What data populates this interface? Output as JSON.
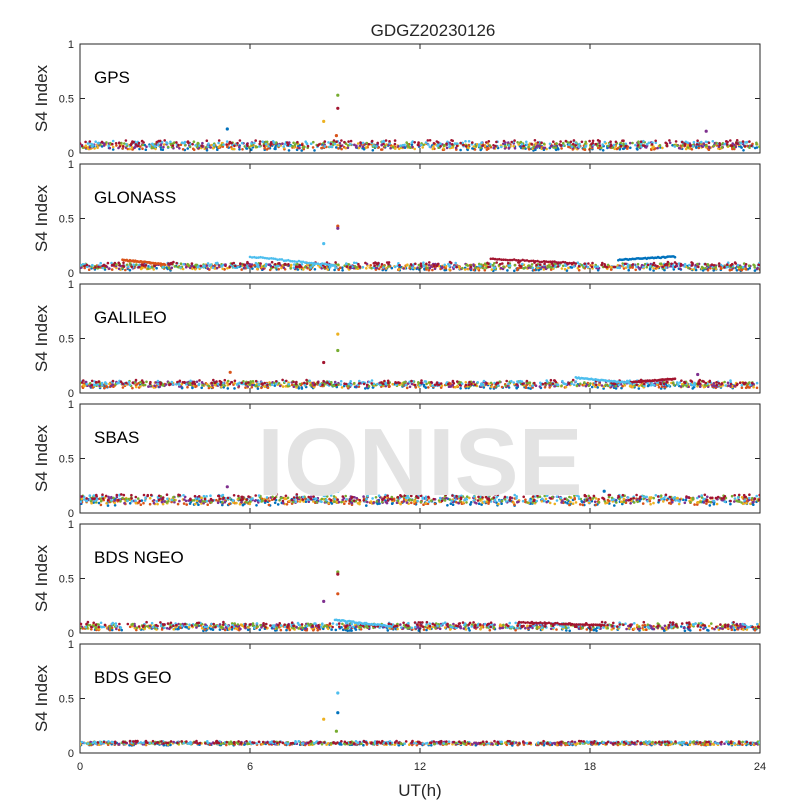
{
  "chart_data": {
    "type": "scatter",
    "title": "GDGZ20230126",
    "xlabel": "UT(h)",
    "xlim": [
      0,
      24
    ],
    "xticks": [
      "0",
      "6",
      "12",
      "18",
      "24"
    ],
    "ylabel": "S4 Index",
    "ylim": [
      0,
      1
    ],
    "yticks": [
      "0",
      "0.5",
      "1"
    ],
    "watermark": "IONISE",
    "colors": [
      "#0072BD",
      "#D95319",
      "#EDB120",
      "#7E2F8E",
      "#77AC30",
      "#4DBEEE",
      "#A2142F"
    ],
    "panels": [
      {
        "label": "GPS",
        "baseline": 0.07,
        "spread": 0.035,
        "notes": "dense low-level scintillation across the day",
        "spikes": [
          {
            "x": 5.2,
            "y": 0.22
          },
          {
            "x": 8.6,
            "y": 0.29
          },
          {
            "x": 9.1,
            "y": 0.53
          },
          {
            "x": 9.1,
            "y": 0.41
          },
          {
            "x": 9.05,
            "y": 0.16
          },
          {
            "x": 22.1,
            "y": 0.2
          }
        ],
        "arcs": []
      },
      {
        "label": "GLONASS",
        "baseline": 0.06,
        "spread": 0.03,
        "spikes": [
          {
            "x": 9.1,
            "y": 0.43
          },
          {
            "x": 9.1,
            "y": 0.41
          },
          {
            "x": 8.6,
            "y": 0.27
          }
        ],
        "arcs": [
          {
            "x0": 6.0,
            "x1": 9.0,
            "y0": 0.15,
            "y1": 0.07
          },
          {
            "x0": 14.5,
            "x1": 17.5,
            "y0": 0.13,
            "y1": 0.09
          },
          {
            "x0": 19.0,
            "x1": 21.0,
            "y0": 0.12,
            "y1": 0.15
          },
          {
            "x0": 1.5,
            "x1": 3.0,
            "y0": 0.12,
            "y1": 0.08
          }
        ]
      },
      {
        "label": "GALILEO",
        "baseline": 0.08,
        "spread": 0.03,
        "spikes": [
          {
            "x": 9.1,
            "y": 0.54
          },
          {
            "x": 9.1,
            "y": 0.39
          },
          {
            "x": 8.6,
            "y": 0.28
          },
          {
            "x": 5.3,
            "y": 0.19
          },
          {
            "x": 21.8,
            "y": 0.17
          }
        ],
        "arcs": [
          {
            "x0": 17.5,
            "x1": 19.5,
            "y0": 0.14,
            "y1": 0.09
          },
          {
            "x0": 19.5,
            "x1": 21.0,
            "y0": 0.1,
            "y1": 0.13
          }
        ]
      },
      {
        "label": "SBAS",
        "baseline": 0.12,
        "spread": 0.04,
        "spikes": [
          {
            "x": 5.2,
            "y": 0.24
          },
          {
            "x": 9.1,
            "y": 0.2
          },
          {
            "x": 18.5,
            "y": 0.2
          }
        ],
        "arcs": []
      },
      {
        "label": "BDS NGEO",
        "baseline": 0.06,
        "spread": 0.03,
        "spikes": [
          {
            "x": 9.1,
            "y": 0.56
          },
          {
            "x": 9.1,
            "y": 0.54
          },
          {
            "x": 9.1,
            "y": 0.36
          },
          {
            "x": 8.6,
            "y": 0.29
          }
        ],
        "arcs": [
          {
            "x0": 9.0,
            "x1": 11.0,
            "y0": 0.12,
            "y1": 0.06
          },
          {
            "x0": 15.5,
            "x1": 18.5,
            "y0": 0.1,
            "y1": 0.07
          }
        ]
      },
      {
        "label": "BDS GEO",
        "baseline": 0.09,
        "spread": 0.015,
        "spikes": [
          {
            "x": 9.1,
            "y": 0.55
          },
          {
            "x": 9.1,
            "y": 0.37
          },
          {
            "x": 8.6,
            "y": 0.31
          },
          {
            "x": 9.05,
            "y": 0.2
          }
        ],
        "arcs": []
      }
    ]
  }
}
